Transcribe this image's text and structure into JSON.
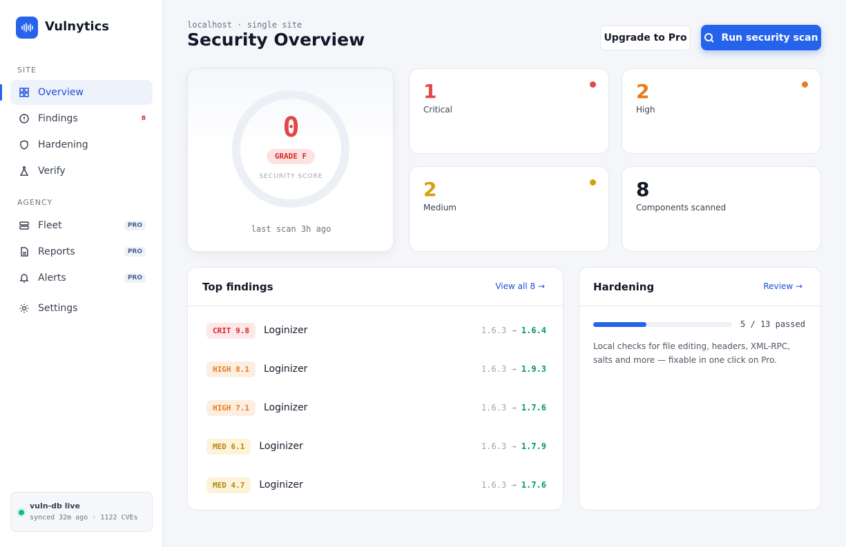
{
  "sidebar": {
    "brand": "Vulnytics",
    "sections": [
      {
        "label": "SITE",
        "items": [
          {
            "label": "Overview"
          },
          {
            "label": "Findings",
            "badge": 8
          },
          {
            "label": "Hardening"
          },
          {
            "label": "Verify"
          }
        ]
      },
      {
        "label": "AGENCY",
        "items": [
          {
            "label": "Fleet",
            "badge": "PRO"
          },
          {
            "label": "Reports",
            "badge": "PRO"
          },
          {
            "label": "Alerts",
            "badge": "PRO"
          }
        ]
      }
    ],
    "settings": "Settings",
    "status": {
      "title": "vuln-db live",
      "detail": "synced 32m ago · 1122 CVEs"
    }
  },
  "header": {
    "subtitle": "localhost · single site",
    "title": "Security Overview",
    "buttons": [
      "Upgrade to Pro",
      "Run security scan"
    ]
  },
  "score": {
    "value": 0,
    "grade": "GRADE F",
    "label": "SECURITY SCORE",
    "last_scan": "last scan 3h ago"
  },
  "stats": [
    {
      "value": 1,
      "label": "Critical"
    },
    {
      "value": 2,
      "label": "High"
    },
    {
      "value": 2,
      "label": "Medium"
    },
    {
      "value": 8,
      "label": "Components scanned"
    }
  ],
  "findings": {
    "title": "Top findings",
    "link": "View all 8 →",
    "arrow": "→",
    "rows": [
      {
        "severity": "CRIT",
        "score": 9.8,
        "name": "Loginizer",
        "from": "1.6.3",
        "to": "1.6.4"
      },
      {
        "severity": "HIGH",
        "score": 8.1,
        "name": "Loginizer",
        "from": "1.6.3",
        "to": "1.9.3"
      },
      {
        "severity": "HIGH",
        "score": 7.1,
        "name": "Loginizer",
        "from": "1.6.3",
        "to": "1.7.6"
      },
      {
        "severity": "MED",
        "score": 6.1,
        "name": "Loginizer",
        "from": "1.6.3",
        "to": "1.7.9"
      },
      {
        "severity": "MED",
        "score": 4.7,
        "name": "Loginizer",
        "from": "1.6.3",
        "to": "1.7.6"
      }
    ]
  },
  "hardening": {
    "title": "Hardening",
    "link": "Review →",
    "passed": 5,
    "separator": "/",
    "total": 13,
    "passed_label": "passed",
    "description": "Local checks for file editing, headers, XML-RPC, salts and more — fixable in one click on Pro."
  }
}
